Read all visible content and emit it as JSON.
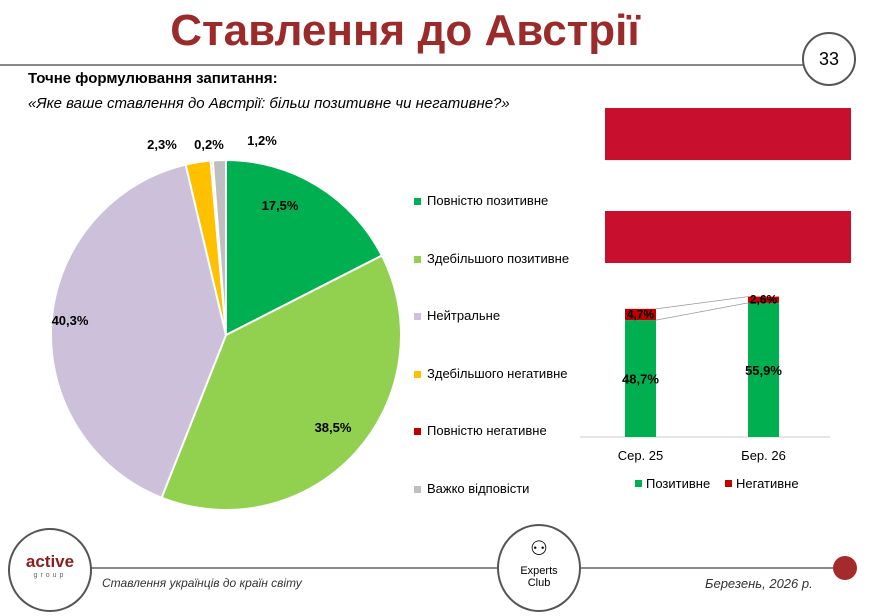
{
  "title": "Ставлення до Австрії",
  "page_number": "33",
  "question_label": "Точне формулювання запитання:",
  "question_text": "«Яке ваше ставлення до Австрії: більш позитивне чи негативне?»",
  "colors": {
    "title": "#9b2b2b",
    "flag_red": "#c8102e"
  },
  "chart_data": [
    {
      "type": "pie",
      "categories": [
        "Повністю позитивне",
        "Здебільшого позитивне",
        "Нейтральне",
        "Здебільшого негативне",
        "Повністю негативне",
        "Важко відповісти"
      ],
      "values": [
        17.5,
        38.5,
        40.3,
        2.3,
        0.2,
        1.2
      ],
      "labels": [
        "17,5%",
        "38,5%",
        "40,3%",
        "2,3%",
        "0,2%",
        "1,2%"
      ],
      "colors": [
        "#00b050",
        "#92d050",
        "#ccc0da",
        "#ffc000",
        "#c00000",
        "#bfbfbf"
      ],
      "legend": "right"
    },
    {
      "type": "bar",
      "stacked": true,
      "categories": [
        "Сер. 25",
        "Бер. 26"
      ],
      "series": [
        {
          "name": "Позитивне",
          "values": [
            48.7,
            55.9
          ],
          "labels": [
            "48,7%",
            "55,9%"
          ],
          "color": "#00b050"
        },
        {
          "name": "Негативне",
          "values": [
            4.7,
            2.6
          ],
          "labels": [
            "4,7%",
            "2,6%"
          ],
          "color": "#c00000"
        }
      ],
      "legend": "bottom"
    }
  ],
  "footer": {
    "logo_main": "active",
    "logo_sub": "group",
    "subtitle": "Ставлення українців до країн світу",
    "center_logo": "Experts Club",
    "date": "Березень, 2026 р."
  }
}
